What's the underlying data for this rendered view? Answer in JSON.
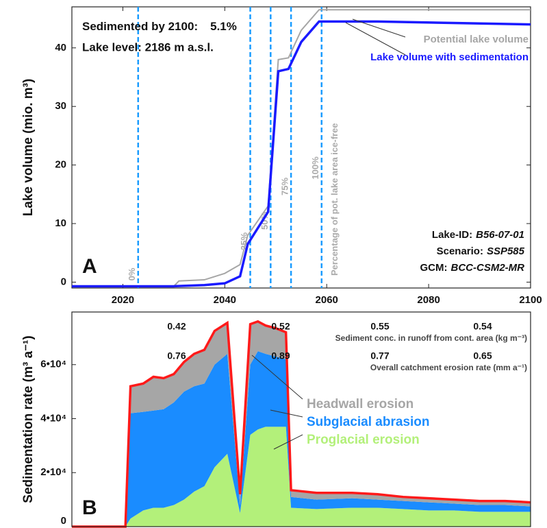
{
  "chart_data": [
    {
      "type": "line",
      "label": "A",
      "ylabel": "Lake volume (mio. m³)",
      "sediment_text": "Sedimented by 2100:",
      "sediment_value": "5.1%",
      "lake_level": "Lake level: 2186 m a.s.l.",
      "info": [
        {
          "key": "Lake-ID:",
          "value": "B56-07-01"
        },
        {
          "key": "Scenario:",
          "value": "SSP585"
        },
        {
          "key": "GCM:",
          "value": "BCC-CSM2-MR"
        }
      ],
      "xlim": [
        2010,
        2100
      ],
      "xticks": [
        2020,
        2040,
        2060,
        2080,
        2100
      ],
      "ylim": [
        -1,
        47
      ],
      "yticks": [
        0,
        10,
        20,
        30,
        40
      ],
      "series": [
        {
          "name": "Potential lake volume",
          "color": "#a6a6a6",
          "x": [
            2010,
            2030,
            2031,
            2036,
            2040,
            2043,
            2044.5,
            2048.5,
            2050.5,
            2052.5,
            2055,
            2058.5,
            2070,
            2100
          ],
          "values": [
            -0.7,
            -0.7,
            0.2,
            0.4,
            1.5,
            3,
            8,
            13,
            38,
            38.3,
            43,
            46.5,
            46.5,
            46.5
          ]
        },
        {
          "name": "Lake volume with sedimentation",
          "color": "#1a1aff",
          "x": [
            2010,
            2030,
            2036,
            2040,
            2043,
            2044.5,
            2048.5,
            2050.5,
            2052.5,
            2055,
            2058.5,
            2070,
            2100
          ],
          "values": [
            -0.7,
            -0.7,
            -0.5,
            -0.2,
            1,
            6.5,
            12,
            36,
            36.4,
            41,
            44.5,
            44.5,
            44
          ]
        }
      ],
      "markers_label": "Percentage of pot. lake area ice-free",
      "markers": [
        {
          "x": 2023,
          "label": "0%"
        },
        {
          "x": 2045,
          "label": "25%"
        },
        {
          "x": 2049,
          "label": "50%"
        },
        {
          "x": 2053,
          "label": "75%"
        },
        {
          "x": 2059,
          "label": "100%"
        }
      ],
      "marker_color": "#1a9cff"
    },
    {
      "type": "stacked_area",
      "label": "B",
      "ylabel": "Sedimentation rate (m³ a⁻¹)",
      "xlim": [
        2010,
        2100
      ],
      "ylim": [
        0,
        79500
      ],
      "yticks": [
        0,
        {
          "value": 20000,
          "label": "2•10⁴"
        },
        {
          "value": 40000,
          "label": "4•10⁴"
        },
        {
          "value": 60000,
          "label": "6•10⁴"
        }
      ],
      "x": [
        2010,
        2020.5,
        2021.5,
        2024,
        2026,
        2028,
        2030,
        2032,
        2034,
        2036,
        2038,
        2040.5,
        2043,
        2045,
        2046.5,
        2048,
        2050,
        2052,
        2053,
        2058,
        2065,
        2070,
        2075,
        2080,
        2085,
        2090,
        2095,
        2100
      ],
      "series": [
        {
          "name": "Proglacial erosion",
          "color": "#b3f07a",
          "values": [
            0,
            0,
            3000,
            6000,
            7000,
            7000,
            8000,
            10000,
            13000,
            15000,
            22000,
            27000,
            5000,
            34000,
            36000,
            37000,
            37000,
            37000,
            7000,
            6500,
            7000,
            7000,
            6500,
            6000,
            6000,
            5500,
            5500,
            5500
          ]
        },
        {
          "name": "Subglacial abrasion",
          "color": "#1a8cff",
          "values": [
            0,
            0,
            39000,
            36500,
            36000,
            36500,
            38000,
            40000,
            39000,
            38000,
            38000,
            37000,
            3000,
            26000,
            29000,
            27000,
            26000,
            25000,
            4000,
            3500,
            3500,
            3000,
            3000,
            3000,
            2500,
            2500,
            2500,
            2000
          ]
        },
        {
          "name": "Headwall erosion",
          "color": "#a6a6a6",
          "values": [
            0,
            0,
            10000,
            10500,
            12500,
            11500,
            10500,
            11000,
            12000,
            12500,
            12500,
            11500,
            4000,
            15000,
            11000,
            10500,
            10500,
            10000,
            2500,
            2500,
            2000,
            2000,
            1500,
            1500,
            1500,
            1500,
            1500,
            1500
          ]
        }
      ],
      "outline_color": "#ff1a1a",
      "sediment_conc": {
        "label": "Sediment conc. in runoff from cont. area (kg m⁻³)",
        "values": [
          0.42,
          0.52,
          0.55,
          0.54
        ]
      },
      "erosion_rate": {
        "label": "Overall catchment erosion rate (mm a⁻¹)",
        "values": [
          0.76,
          0.89,
          0.77,
          0.65
        ]
      }
    }
  ]
}
